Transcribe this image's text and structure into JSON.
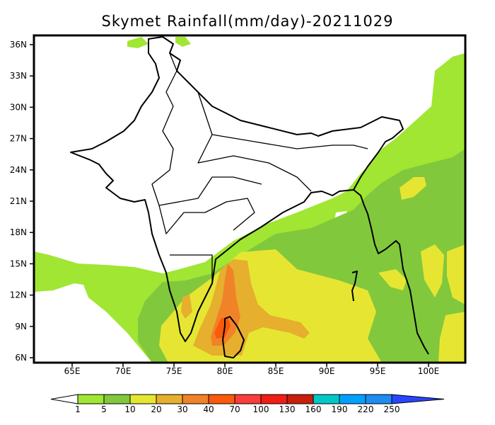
{
  "title": "Skymet Rainfall(mm/day)-20211029",
  "lat_labels": [
    "36N",
    "33N",
    "30N",
    "27N",
    "24N",
    "21N",
    "18N",
    "15N",
    "12N",
    "9N",
    "6N"
  ],
  "lon_labels": [
    "65E",
    "70E",
    "75E",
    "80E",
    "85E",
    "90E",
    "95E",
    "100E"
  ],
  "legend": {
    "labels": [
      "1",
      "5",
      "10",
      "20",
      "30",
      "40",
      "70",
      "100",
      "130",
      "160",
      "190",
      "220",
      "250"
    ],
    "colors": [
      "#a0e632",
      "#82c83c",
      "#e6e632",
      "#e6af2d",
      "#f08228",
      "#fa5a0a",
      "#fa3c3c",
      "#f01e14",
      "#c81e0a",
      "#00c8c8",
      "#00a0ff",
      "#1e8cf0",
      "#2846ff"
    ]
  }
}
